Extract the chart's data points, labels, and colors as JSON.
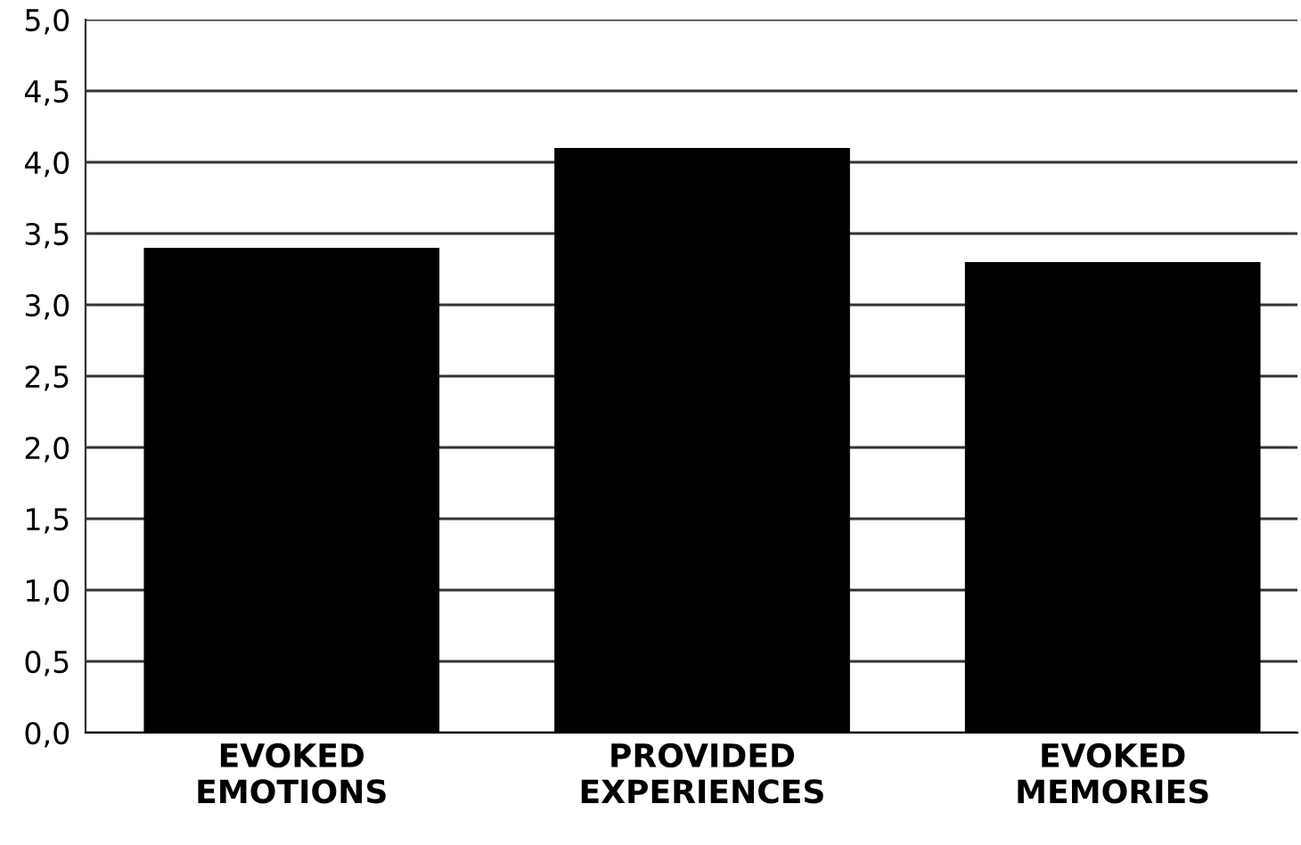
{
  "chart_data": {
    "type": "bar",
    "categories": [
      "EVOKED\nEMOTIONS",
      "PROVIDED\nEXPERIENCES",
      "EVOKED\nMEMORIES"
    ],
    "values": [
      3.4,
      4.1,
      3.3
    ],
    "color": "#000000",
    "ylim": [
      0,
      5
    ],
    "yticks": [
      {
        "value": 0,
        "label": "0,0"
      },
      {
        "value": 0.5,
        "label": "0,5"
      },
      {
        "value": 1,
        "label": "1,0"
      },
      {
        "value": 1.5,
        "label": "1,5"
      },
      {
        "value": 2,
        "label": "2,0"
      },
      {
        "value": 2.5,
        "label": "2,5"
      },
      {
        "value": 3,
        "label": "3,0"
      },
      {
        "value": 3.5,
        "label": "3,5"
      },
      {
        "value": 4,
        "label": "4,0"
      },
      {
        "value": 4.5,
        "label": "4,5"
      },
      {
        "value": 5,
        "label": "5,0"
      }
    ],
    "grid": "y",
    "legend": false
  }
}
